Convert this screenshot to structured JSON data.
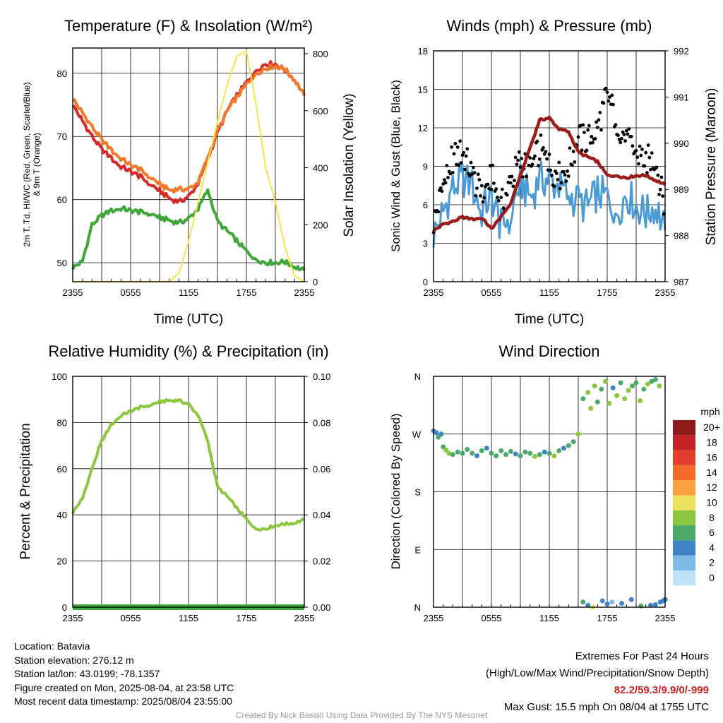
{
  "x_ticks": [
    "2355",
    "0555",
    "1155",
    "1755",
    "2355"
  ],
  "chart_data": [
    {
      "type": "line",
      "title": "Temperature (F) & Insolation (W/m²)",
      "xlabel": "Time (UTC)",
      "ylabel_left": "2m T, Td, HI/WC (Red, Green, Scarlet/Blue) & 9m T (Orange)",
      "ylabel_right": "Solar Insolation (Yellow)",
      "ylim_left": [
        47,
        84
      ],
      "yticks_left": [
        50,
        60,
        70,
        80
      ],
      "ylim_right": [
        0,
        820
      ],
      "yticks_right": [
        0,
        200,
        400,
        600,
        800
      ],
      "x": [
        0,
        1,
        2,
        3,
        4,
        5,
        6,
        7,
        8,
        9,
        10,
        11,
        12,
        13,
        14,
        15,
        16,
        17,
        18,
        19,
        20,
        21,
        22,
        23,
        24
      ],
      "series": [
        {
          "name": "2m T",
          "color": "#d42a2a",
          "axis": "left",
          "values": [
            75,
            72.5,
            70,
            68,
            66.5,
            65.2,
            64.5,
            63.6,
            62.5,
            61.4,
            60.2,
            59.6,
            60.5,
            62.5,
            66.5,
            70.5,
            74,
            76.5,
            78.5,
            80.5,
            81.5,
            81.5,
            80.5,
            79,
            76.5
          ]
        },
        {
          "name": "9m T",
          "color": "#f07a2a",
          "axis": "left",
          "values": [
            76,
            73.8,
            71.5,
            69.5,
            67.8,
            66.5,
            65.5,
            64.7,
            63.6,
            62.5,
            61.5,
            61.6,
            61.7,
            62.7,
            66.8,
            70.8,
            74,
            76.2,
            78.2,
            80.0,
            80.8,
            81.2,
            80.6,
            79.0,
            76.5
          ]
        },
        {
          "name": "Td",
          "color": "#3fa63a",
          "axis": "left",
          "values": [
            49.2,
            50.2,
            56,
            57.5,
            58.2,
            58.6,
            58.3,
            58.0,
            57.8,
            57.2,
            56.7,
            56.3,
            57.0,
            58.5,
            61.6,
            56.5,
            55.0,
            53.5,
            51.8,
            50.6,
            50.0,
            50.1,
            50.1,
            49.4,
            48.8
          ]
        },
        {
          "name": "Solar Insolation",
          "color": "#f7e34a",
          "axis": "right",
          "values": [
            0,
            0,
            0,
            0,
            0,
            0,
            0,
            0,
            0,
            0,
            0,
            30,
            140,
            280,
            420,
            560,
            690,
            790,
            810,
            620,
            400,
            280,
            120,
            20,
            0
          ]
        }
      ]
    },
    {
      "type": "line",
      "title": "Winds (mph) & Pressure (mb)",
      "xlabel": "Time (UTC)",
      "ylabel_left": "Sonic Wind & Gust (Blue, Black)",
      "ylabel_right": "Station Pressure (Maroon)",
      "ylim_left": [
        0,
        18
      ],
      "yticks_left": [
        0,
        3,
        6,
        9,
        12,
        15,
        18
      ],
      "ylim_right": [
        987,
        992
      ],
      "yticks_right": [
        987,
        988,
        989,
        990,
        991,
        992
      ],
      "x": [
        0,
        1,
        2,
        3,
        4,
        5,
        6,
        7,
        8,
        9,
        10,
        11,
        12,
        13,
        14,
        15,
        16,
        17,
        18,
        19,
        20,
        21,
        22,
        23,
        24
      ],
      "series": [
        {
          "name": "Sonic Wind",
          "color": "#4a9ad6",
          "axis": "left",
          "values": [
            3.6,
            5.5,
            7.2,
            8.1,
            7.4,
            5.5,
            6.8,
            4.2,
            5.2,
            7.8,
            6.5,
            7.9,
            8.0,
            7.3,
            6.8,
            6.2,
            5.8,
            7.0,
            6.5,
            5.5,
            6.8,
            6.0,
            5.2,
            6.0,
            4.0
          ]
        },
        {
          "name": "Gust",
          "color": "#000000",
          "axis": "left",
          "values": [
            4.6,
            7.4,
            9.6,
            10.1,
            8.4,
            6.5,
            8.2,
            5.8,
            7.8,
            9.5,
            8.6,
            10.4,
            9.0,
            8.2,
            9.0,
            11.2,
            11.0,
            12.0,
            14.6,
            12.5,
            11.0,
            10.0,
            9.5,
            9.5,
            5.5
          ]
        },
        {
          "name": "Station Pressure",
          "color": "#9b1b1b",
          "axis": "right",
          "values": [
            988.1,
            988.25,
            988.3,
            988.4,
            988.35,
            988.38,
            988.15,
            988.4,
            988.7,
            989.3,
            989.9,
            990.5,
            990.55,
            990.3,
            990.25,
            989.8,
            989.7,
            989.6,
            989.3,
            989.3,
            989.25,
            989.3,
            989.3,
            989.2,
            989.1
          ]
        }
      ]
    },
    {
      "type": "line",
      "title": "Relative Humidity (%) & Precipitation (in)",
      "ylabel_left": "Percent & Precipitation",
      "ylim_left": [
        0,
        100
      ],
      "yticks_left": [
        0,
        20,
        40,
        60,
        80,
        100
      ],
      "ylim_right": [
        0,
        0.1
      ],
      "yticks_right": [
        "0.00",
        "0.02",
        "0.04",
        "0.06",
        "0.08",
        "0.10"
      ],
      "x": [
        0,
        1,
        2,
        3,
        4,
        5,
        6,
        7,
        8,
        9,
        10,
        11,
        12,
        13,
        14,
        15,
        16,
        17,
        18,
        19,
        20,
        21,
        22,
        23,
        24
      ],
      "series": [
        {
          "name": "Relative Humidity",
          "color": "#8cc63f",
          "axis": "left",
          "values": [
            41,
            47,
            60,
            72,
            79,
            83,
            85,
            86.5,
            87.5,
            89,
            89.5,
            89.5,
            88,
            83,
            72,
            52,
            48,
            43,
            38,
            34,
            34,
            35.5,
            36,
            36.5,
            38
          ]
        },
        {
          "name": "Precipitation",
          "color": "#3fa63a",
          "axis": "right",
          "values": [
            0,
            0,
            0,
            0,
            0,
            0,
            0,
            0,
            0,
            0,
            0,
            0,
            0,
            0,
            0,
            0,
            0,
            0,
            0,
            0,
            0,
            0,
            0,
            0,
            0
          ]
        }
      ]
    },
    {
      "type": "scatter",
      "title": "Wind Direction",
      "ylabel_left": "Direction (Colored By Speed)",
      "yticks_left": [
        "N",
        "E",
        "S",
        "W",
        "N"
      ],
      "ylim_left": [
        0,
        360
      ],
      "colorbar": {
        "title": "mph",
        "labels": [
          "20+",
          "18",
          "16",
          "14",
          "12",
          "10",
          "8",
          "6",
          "4",
          "2",
          "0"
        ],
        "colors": [
          "#8f1a1a",
          "#c62326",
          "#e2402c",
          "#f26a2c",
          "#f9a03f",
          "#ede05a",
          "#8cc63f",
          "#4ba96a",
          "#3f83c4",
          "#7fbbe6",
          "#bfe3f7"
        ]
      },
      "points": [
        [
          0,
          275,
          3
        ],
        [
          0.3,
          272,
          4
        ],
        [
          0.5,
          265,
          5
        ],
        [
          0.8,
          270,
          3
        ],
        [
          1,
          250,
          6
        ],
        [
          1.3,
          245,
          7
        ],
        [
          1.6,
          240,
          7
        ],
        [
          2,
          238,
          6
        ],
        [
          2.5,
          242,
          5
        ],
        [
          3,
          240,
          6
        ],
        [
          3.5,
          246,
          5
        ],
        [
          4,
          240,
          6
        ],
        [
          4.5,
          236,
          4
        ],
        [
          5,
          244,
          5
        ],
        [
          5.5,
          248,
          4
        ],
        [
          6,
          240,
          5
        ],
        [
          6.5,
          236,
          6
        ],
        [
          7,
          244,
          5
        ],
        [
          7.5,
          238,
          6
        ],
        [
          8,
          243,
          5
        ],
        [
          8.5,
          239,
          4
        ],
        [
          9,
          236,
          6
        ],
        [
          9.5,
          242,
          5
        ],
        [
          10,
          240,
          6
        ],
        [
          10.5,
          235,
          7
        ],
        [
          11,
          238,
          6
        ],
        [
          11.5,
          242,
          4
        ],
        [
          12,
          240,
          6
        ],
        [
          12.5,
          236,
          7
        ],
        [
          13,
          244,
          5
        ],
        [
          13.5,
          248,
          4
        ],
        [
          14,
          252,
          5
        ],
        [
          14.5,
          258,
          6
        ],
        [
          15,
          270,
          7
        ],
        [
          15.5,
          325,
          6
        ],
        [
          16,
          335,
          7
        ],
        [
          16.3,
          310,
          8
        ],
        [
          16.7,
          345,
          7
        ],
        [
          17,
          320,
          6
        ],
        [
          17.4,
          340,
          5
        ],
        [
          17.8,
          352,
          7
        ],
        [
          18.2,
          318,
          8
        ],
        [
          18.6,
          342,
          4
        ],
        [
          19,
          330,
          7
        ],
        [
          19.4,
          350,
          6
        ],
        [
          19.8,
          325,
          7
        ],
        [
          20.2,
          338,
          8
        ],
        [
          20.6,
          345,
          6
        ],
        [
          21,
          350,
          5
        ],
        [
          21.4,
          322,
          7
        ],
        [
          21.8,
          340,
          6
        ],
        [
          22.2,
          348,
          7
        ],
        [
          22.6,
          352,
          6
        ],
        [
          23,
          355,
          5
        ],
        [
          23.4,
          345,
          7
        ],
        [
          17.5,
          10,
          3
        ],
        [
          18,
          5,
          4
        ],
        [
          18.5,
          8,
          2
        ],
        [
          19.5,
          6,
          3
        ],
        [
          20.5,
          12,
          4
        ],
        [
          21.5,
          2,
          5
        ],
        [
          22.5,
          3,
          4
        ],
        [
          23,
          4,
          3
        ],
        [
          23.5,
          8,
          4
        ],
        [
          23.8,
          10,
          3
        ],
        [
          24,
          12,
          3
        ],
        [
          15.5,
          8,
          5
        ],
        [
          16,
          3,
          4
        ],
        [
          16.5,
          0,
          10
        ]
      ]
    }
  ],
  "info_left": [
    "Location: Batavia",
    "Station elevation: 276.12 m",
    "Station lat/lon: 43.0199; -78.1357",
    "Figure created on Mon, 2025-08-04, at 23:58 UTC",
    "Most recent data timestamp: 2025/08/04 23:55:00"
  ],
  "extremes": {
    "line1": "Extremes For Past 24 Hours",
    "line2": "(High/Low/Max Wind/Precipitation/Snow Depth)",
    "values": "82.2/59.3/9.9/0/-999",
    "gust": "Max Gust: 15.5 mph On 08/04 at 1755 UTC"
  },
  "credit": "Created By Nick Bassill Using Data Provided By The NYS Mesonet"
}
